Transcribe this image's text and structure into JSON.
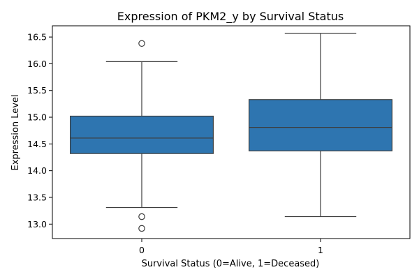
{
  "chart_data": {
    "type": "box",
    "title": "Expression of PKM2_y by Survival Status",
    "xlabel": "Survival Status (0=Alive, 1=Deceased)",
    "ylabel": "Expression Level",
    "ylim": [
      12.73,
      16.71
    ],
    "yticks": [
      "13.0",
      "13.5",
      "14.0",
      "14.5",
      "15.0",
      "15.5",
      "16.0",
      "16.5"
    ],
    "categories": [
      "0",
      "1"
    ],
    "box_color": "#2e75b0",
    "line_color": "#3d3d3d",
    "boxes": [
      {
        "category": "0",
        "whisker_low": 13.31,
        "q1": 14.32,
        "median": 14.61,
        "q3": 15.02,
        "whisker_high": 16.04,
        "outliers": [
          16.38,
          13.14,
          12.92
        ]
      },
      {
        "category": "1",
        "whisker_low": 13.14,
        "q1": 14.37,
        "median": 14.81,
        "q3": 15.33,
        "whisker_high": 16.57,
        "outliers": []
      }
    ],
    "grid": false,
    "legend": "none"
  }
}
